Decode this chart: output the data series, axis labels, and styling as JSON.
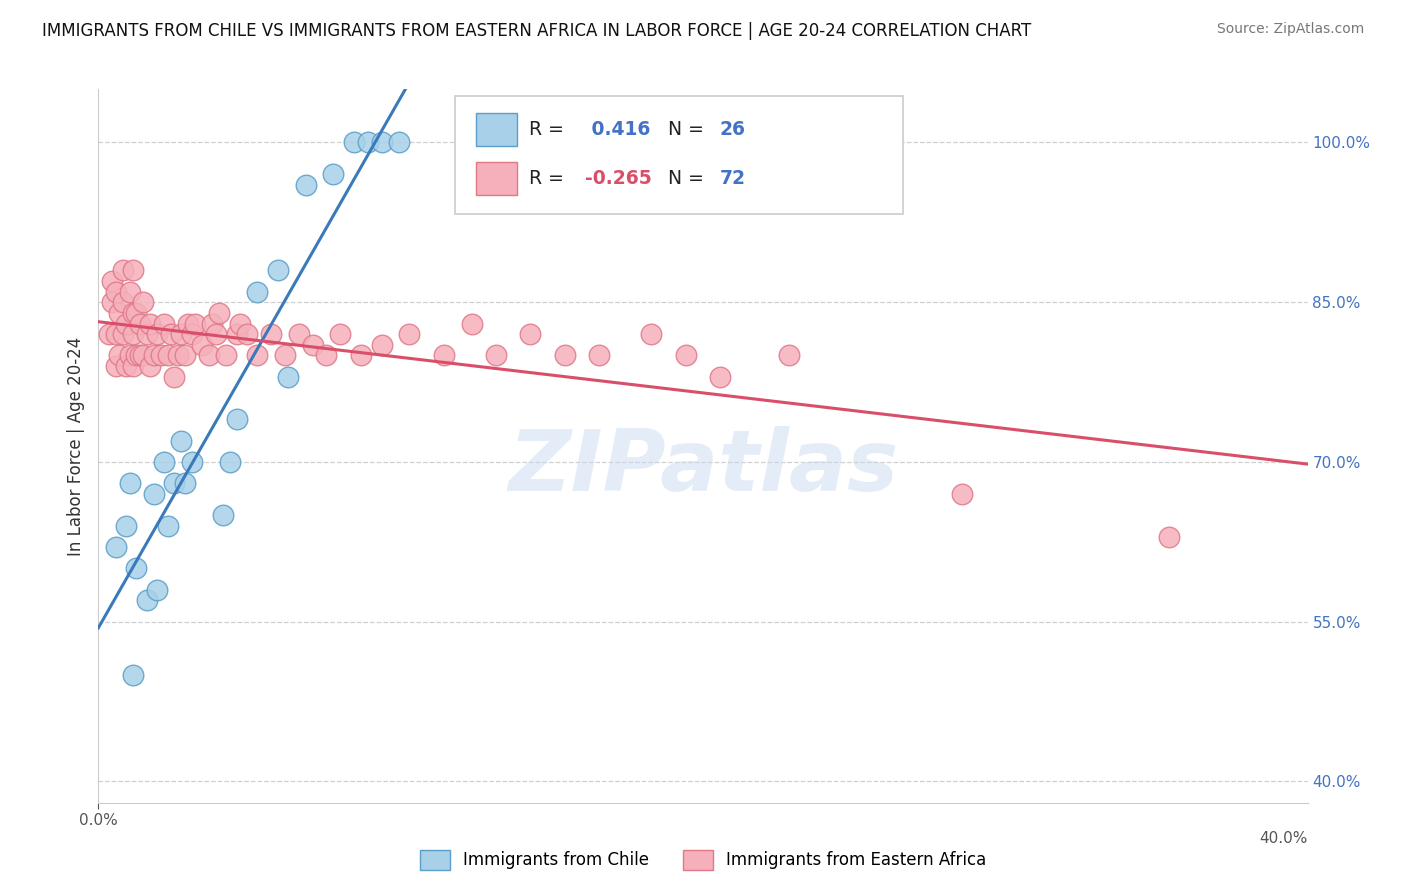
{
  "title": "IMMIGRANTS FROM CHILE VS IMMIGRANTS FROM EASTERN AFRICA IN LABOR FORCE | AGE 20-24 CORRELATION CHART",
  "source": "Source: ZipAtlas.com",
  "ylabel": "In Labor Force | Age 20-24",
  "xlim": [
    0.0,
    0.35
  ],
  "ylim": [
    0.38,
    1.05
  ],
  "yticks": [
    0.4,
    0.55,
    0.7,
    0.85,
    1.0
  ],
  "ytick_labels": [
    "40.0%",
    "55.0%",
    "70.0%",
    "85.0%",
    "100.0%"
  ],
  "xticks": [
    0.0,
    0.35
  ],
  "xtick_labels": [
    "0.0%",
    ""
  ],
  "chile_color": "#a8d0e8",
  "chile_edge_color": "#5a9ec9",
  "eastern_africa_color": "#f5b0bb",
  "eastern_africa_edge_color": "#e07888",
  "chile_R": 0.416,
  "chile_N": 26,
  "eastern_africa_R": -0.265,
  "eastern_africa_N": 72,
  "legend_label_chile": "Immigrants from Chile",
  "legend_label_eastern_africa": "Immigrants from Eastern Africa",
  "chile_line_color": "#3a7aba",
  "eastern_africa_line_color": "#d94f6a",
  "watermark": "ZIPatlas",
  "blue_label_color": "#4472c4",
  "pink_label_color": "#d94f6a",
  "chile_points_x": [
    0.005,
    0.008,
    0.009,
    0.01,
    0.011,
    0.014,
    0.016,
    0.017,
    0.019,
    0.02,
    0.022,
    0.024,
    0.025,
    0.027,
    0.036,
    0.038,
    0.04,
    0.046,
    0.052,
    0.055,
    0.06,
    0.068,
    0.074,
    0.078,
    0.082,
    0.087
  ],
  "chile_points_y": [
    0.62,
    0.64,
    0.68,
    0.5,
    0.6,
    0.57,
    0.67,
    0.58,
    0.7,
    0.64,
    0.68,
    0.72,
    0.68,
    0.7,
    0.65,
    0.7,
    0.74,
    0.86,
    0.88,
    0.78,
    0.96,
    0.97,
    1.0,
    1.0,
    1.0,
    1.0
  ],
  "eastern_africa_points_x": [
    0.003,
    0.004,
    0.004,
    0.005,
    0.005,
    0.005,
    0.006,
    0.006,
    0.007,
    0.007,
    0.007,
    0.008,
    0.008,
    0.009,
    0.009,
    0.01,
    0.01,
    0.01,
    0.01,
    0.011,
    0.011,
    0.012,
    0.012,
    0.013,
    0.013,
    0.014,
    0.015,
    0.015,
    0.016,
    0.017,
    0.018,
    0.019,
    0.02,
    0.021,
    0.022,
    0.023,
    0.024,
    0.025,
    0.026,
    0.027,
    0.028,
    0.03,
    0.032,
    0.033,
    0.034,
    0.035,
    0.037,
    0.04,
    0.041,
    0.043,
    0.046,
    0.05,
    0.054,
    0.058,
    0.062,
    0.066,
    0.07,
    0.076,
    0.082,
    0.09,
    0.1,
    0.108,
    0.115,
    0.125,
    0.135,
    0.145,
    0.16,
    0.17,
    0.18,
    0.2,
    0.25,
    0.31
  ],
  "eastern_africa_points_y": [
    0.82,
    0.85,
    0.87,
    0.79,
    0.82,
    0.86,
    0.8,
    0.84,
    0.82,
    0.85,
    0.88,
    0.79,
    0.83,
    0.8,
    0.86,
    0.79,
    0.82,
    0.84,
    0.88,
    0.8,
    0.84,
    0.8,
    0.83,
    0.8,
    0.85,
    0.82,
    0.79,
    0.83,
    0.8,
    0.82,
    0.8,
    0.83,
    0.8,
    0.82,
    0.78,
    0.8,
    0.82,
    0.8,
    0.83,
    0.82,
    0.83,
    0.81,
    0.8,
    0.83,
    0.82,
    0.84,
    0.8,
    0.82,
    0.83,
    0.82,
    0.8,
    0.82,
    0.8,
    0.82,
    0.81,
    0.8,
    0.82,
    0.8,
    0.81,
    0.82,
    0.8,
    0.83,
    0.8,
    0.82,
    0.8,
    0.8,
    0.82,
    0.8,
    0.78,
    0.8,
    0.67,
    0.63
  ]
}
